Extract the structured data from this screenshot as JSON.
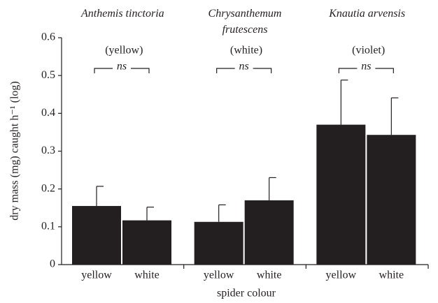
{
  "chart_data": {
    "type": "bar",
    "ylabel": "dry mass (mg) caught h⁻¹ (log)",
    "xlabel": "spider colour",
    "color": "#231f20",
    "ylim": [
      0,
      0.6
    ],
    "yticks": [
      0,
      0.1,
      0.2,
      0.3,
      0.4,
      0.5,
      0.6
    ],
    "groups": [
      {
        "name": "Anthemis tinctoria",
        "flower": "(yellow)",
        "annotation": "ns",
        "categories": [
          "yellow",
          "white"
        ],
        "values": [
          0.155,
          0.117
        ],
        "errors": [
          0.052,
          0.035
        ]
      },
      {
        "name": "Chrysanthemum frutescens",
        "flower": "(white)",
        "annotation": "ns",
        "categories": [
          "yellow",
          "white"
        ],
        "values": [
          0.113,
          0.17
        ],
        "errors": [
          0.045,
          0.06
        ]
      },
      {
        "name": "Knautia arvensis",
        "flower": "(violet)",
        "annotation": "ns",
        "categories": [
          "yellow",
          "white"
        ],
        "values": [
          0.37,
          0.343
        ],
        "errors": [
          0.118,
          0.098
        ]
      }
    ]
  }
}
